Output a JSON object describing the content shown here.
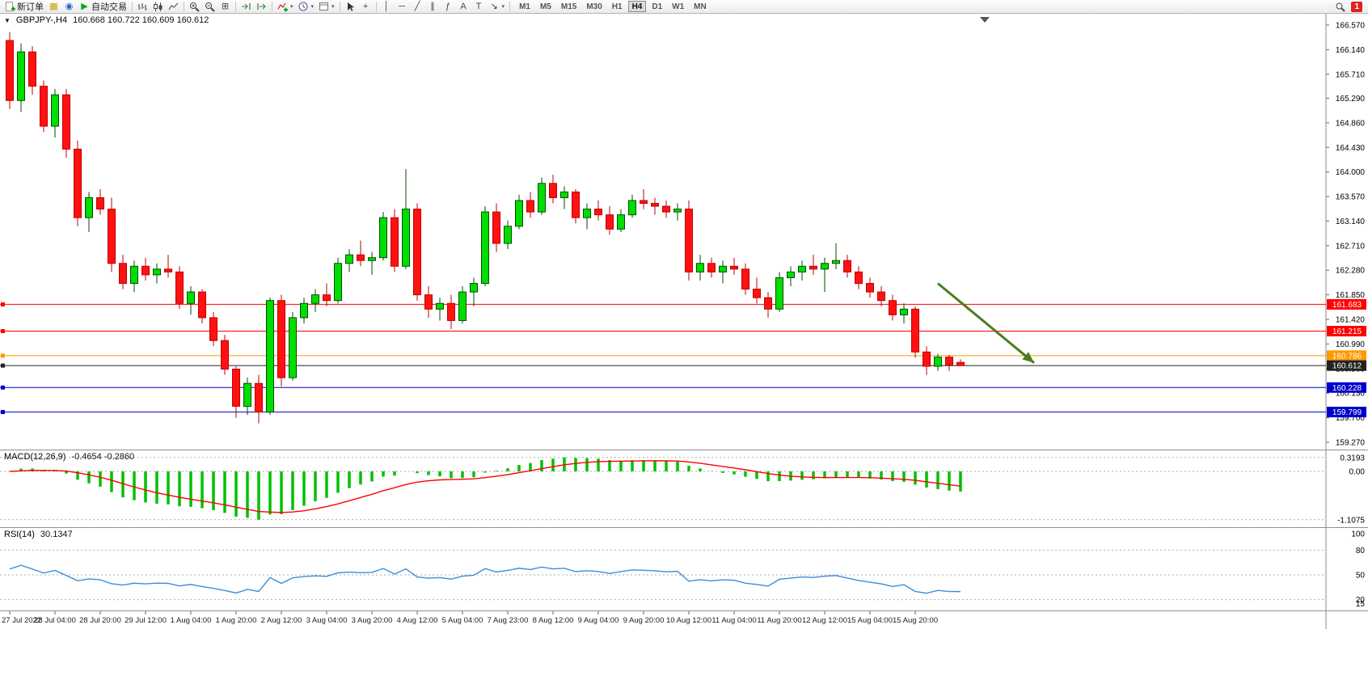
{
  "toolbar": {
    "new_order_label": "新订单",
    "autotrade_label": "自动交易",
    "timeframes": [
      "M1",
      "M5",
      "M15",
      "M30",
      "H1",
      "H4",
      "D1",
      "W1",
      "MN"
    ],
    "active_timeframe": "H4",
    "notification_badge": "1"
  },
  "icons": {
    "symbol_dropdown": "▼",
    "charts": "▦",
    "market_watch": "◉",
    "autotrade_play": "▶",
    "tile_windows": "⊞",
    "vertical_line": "│",
    "horizontal_line": "─",
    "trendline": "╱",
    "channel": "∥",
    "fibonacci": "ƒ",
    "text": "A",
    "text_label": "T",
    "arrows": "↘",
    "dropdown_caret": "▾",
    "crosshair": "+"
  },
  "symbol_info": {
    "symbol": "GBPJPY-,H4",
    "ohlc": "160.668 160.722 160.609 160.612"
  },
  "indicators": {
    "macd": {
      "name": "MACD(12,26,9)",
      "values": "-0.4654 -0.2860",
      "axis_labels": [
        "0.3193",
        "0.00",
        "-1.1075"
      ],
      "axis_values": [
        0.3193,
        0,
        -1.1075
      ]
    },
    "rsi": {
      "name": "RSI(14)",
      "value": "30.1347",
      "axis_labels": [
        "100",
        "80",
        "50",
        "20",
        "15"
      ],
      "axis_values": [
        100,
        80,
        50,
        20,
        15
      ],
      "level_lines": [
        80,
        50,
        20
      ]
    }
  },
  "price_axis": {
    "labels": [
      "166.570",
      "166.140",
      "165.710",
      "165.290",
      "164.860",
      "164.430",
      "164.000",
      "163.570",
      "163.140",
      "162.710",
      "162.280",
      "161.850",
      "161.420",
      "160.990",
      "160.560",
      "160.130",
      "159.700",
      "159.270"
    ]
  },
  "time_axis": {
    "step_bars": 4,
    "labels": [
      "27 Jul 2022",
      "28 Jul 04:00",
      "28 Jul 20:00",
      "29 Jul 12:00",
      "1 Aug 04:00",
      "1 Aug 20:00",
      "2 Aug 12:00",
      "3 Aug 04:00",
      "3 Aug 20:00",
      "4 Aug 12:00",
      "5 Aug 04:00",
      "7 Aug 23:00",
      "8 Aug 12:00",
      "9 Aug 04:00",
      "9 Aug 20:00",
      "10 Aug 12:00",
      "11 Aug 04:00",
      "11 Aug 20:00",
      "12 Aug 12:00",
      "15 Aug 04:00",
      "15 Aug 20:00"
    ]
  },
  "levels": [
    {
      "price": 161.683,
      "label": "161.683",
      "color": "#ff0000"
    },
    {
      "price": 161.215,
      "label": "161.215",
      "color": "#ff0000"
    },
    {
      "price": 160.786,
      "label": "160.786",
      "color": "#ff9900"
    },
    {
      "price": 160.612,
      "label": "160.612",
      "color": "#222222",
      "type": "bid"
    },
    {
      "price": 160.228,
      "label": "160.228",
      "color": "#0000cc"
    },
    {
      "price": 159.799,
      "label": "159.799",
      "color": "#0000cc"
    }
  ],
  "annotation_arrow": {
    "x1_bar": 82,
    "price1": 162.05,
    "x2_bar": 90.5,
    "price2": 160.66,
    "color": "#4a7d1f"
  },
  "colors": {
    "up_fill": "#00dd00",
    "up_stroke": "#004d00",
    "up_wick": "#004d00",
    "down_fill": "#ff1111",
    "down_stroke": "#c00000",
    "down_wick": "#c00000",
    "macd_hist": "#00c000",
    "macd_signal": "#ff0000",
    "rsi_line": "#3e8ed6",
    "axis_text": "#000000",
    "time_text": "#222222"
  },
  "chart_data": {
    "type": "candlestick",
    "title": "GBPJPY-,H4",
    "symbol": "GBPJPY",
    "timeframe": "H4",
    "ylim": [
      159.27,
      166.57
    ],
    "grid": false,
    "ohlc": [
      [
        166.3,
        166.45,
        165.1,
        165.25
      ],
      [
        165.25,
        166.25,
        165.05,
        166.1
      ],
      [
        166.1,
        166.2,
        165.35,
        165.5
      ],
      [
        165.5,
        165.6,
        164.7,
        164.8
      ],
      [
        164.8,
        165.45,
        164.6,
        165.35
      ],
      [
        165.35,
        165.45,
        164.25,
        164.4
      ],
      [
        164.4,
        164.55,
        163.05,
        163.2
      ],
      [
        163.2,
        163.65,
        162.95,
        163.55
      ],
      [
        163.55,
        163.7,
        163.25,
        163.35
      ],
      [
        163.35,
        163.55,
        162.25,
        162.4
      ],
      [
        162.4,
        162.55,
        161.95,
        162.05
      ],
      [
        162.05,
        162.45,
        161.9,
        162.35
      ],
      [
        162.35,
        162.5,
        162.1,
        162.2
      ],
      [
        162.2,
        162.4,
        162.05,
        162.3
      ],
      [
        162.3,
        162.55,
        162.15,
        162.25
      ],
      [
        162.25,
        162.35,
        161.6,
        161.7
      ],
      [
        161.7,
        162.0,
        161.5,
        161.9
      ],
      [
        161.9,
        161.95,
        161.35,
        161.45
      ],
      [
        161.45,
        161.55,
        160.95,
        161.05
      ],
      [
        161.05,
        161.15,
        160.45,
        160.55
      ],
      [
        160.55,
        160.6,
        159.7,
        159.9
      ],
      [
        159.9,
        160.4,
        159.75,
        160.3
      ],
      [
        160.3,
        160.45,
        159.6,
        159.8
      ],
      [
        159.8,
        161.8,
        159.75,
        161.75
      ],
      [
        161.75,
        161.85,
        160.25,
        160.4
      ],
      [
        160.4,
        161.55,
        160.35,
        161.45
      ],
      [
        161.45,
        161.8,
        161.35,
        161.7
      ],
      [
        161.7,
        161.95,
        161.55,
        161.85
      ],
      [
        161.85,
        162.05,
        161.65,
        161.75
      ],
      [
        161.75,
        162.5,
        161.7,
        162.4
      ],
      [
        162.4,
        162.65,
        162.25,
        162.55
      ],
      [
        162.55,
        162.8,
        162.35,
        162.45
      ],
      [
        162.45,
        162.6,
        162.2,
        162.5
      ],
      [
        162.5,
        163.3,
        162.45,
        163.2
      ],
      [
        163.2,
        163.35,
        162.25,
        162.35
      ],
      [
        162.35,
        164.05,
        162.3,
        163.35
      ],
      [
        163.35,
        163.45,
        161.75,
        161.85
      ],
      [
        161.85,
        162.0,
        161.45,
        161.6
      ],
      [
        161.6,
        161.8,
        161.4,
        161.7
      ],
      [
        161.7,
        161.85,
        161.25,
        161.4
      ],
      [
        161.4,
        162.0,
        161.35,
        161.9
      ],
      [
        161.9,
        162.15,
        161.65,
        162.05
      ],
      [
        162.05,
        163.4,
        162.0,
        163.3
      ],
      [
        163.3,
        163.45,
        162.6,
        162.75
      ],
      [
        162.75,
        163.15,
        162.65,
        163.05
      ],
      [
        163.05,
        163.6,
        163.0,
        163.5
      ],
      [
        163.5,
        163.65,
        163.2,
        163.3
      ],
      [
        163.3,
        163.9,
        163.25,
        163.8
      ],
      [
        163.8,
        163.95,
        163.45,
        163.55
      ],
      [
        163.55,
        163.75,
        163.35,
        163.65
      ],
      [
        163.65,
        163.7,
        163.1,
        163.2
      ],
      [
        163.2,
        163.45,
        163.0,
        163.35
      ],
      [
        163.35,
        163.5,
        163.15,
        163.25
      ],
      [
        163.25,
        163.4,
        162.9,
        163.0
      ],
      [
        163.0,
        163.35,
        162.95,
        163.25
      ],
      [
        163.25,
        163.6,
        163.2,
        163.5
      ],
      [
        163.5,
        163.7,
        163.35,
        163.45
      ],
      [
        163.45,
        163.55,
        163.25,
        163.4
      ],
      [
        163.4,
        163.5,
        163.2,
        163.3
      ],
      [
        163.3,
        163.45,
        163.15,
        163.35
      ],
      [
        163.35,
        163.5,
        162.1,
        162.25
      ],
      [
        162.25,
        162.55,
        162.1,
        162.4
      ],
      [
        162.4,
        162.5,
        162.15,
        162.25
      ],
      [
        162.25,
        162.45,
        162.05,
        162.35
      ],
      [
        162.35,
        162.5,
        162.2,
        162.3
      ],
      [
        162.3,
        162.4,
        161.85,
        161.95
      ],
      [
        161.95,
        162.15,
        161.7,
        161.8
      ],
      [
        161.8,
        161.9,
        161.45,
        161.6
      ],
      [
        161.6,
        162.25,
        161.55,
        162.15
      ],
      [
        162.15,
        162.35,
        162.0,
        162.25
      ],
      [
        162.25,
        162.45,
        162.1,
        162.35
      ],
      [
        162.35,
        162.55,
        162.2,
        162.3
      ],
      [
        162.3,
        162.5,
        161.9,
        162.4
      ],
      [
        162.4,
        162.75,
        162.3,
        162.45
      ],
      [
        162.45,
        162.55,
        162.15,
        162.25
      ],
      [
        162.25,
        162.35,
        161.95,
        162.05
      ],
      [
        162.05,
        162.15,
        161.8,
        161.9
      ],
      [
        161.9,
        162.0,
        161.65,
        161.75
      ],
      [
        161.75,
        161.85,
        161.4,
        161.5
      ],
      [
        161.5,
        161.7,
        161.35,
        161.6
      ],
      [
        161.6,
        161.65,
        160.75,
        160.85
      ],
      [
        160.85,
        160.95,
        160.45,
        160.6
      ],
      [
        160.6,
        160.82,
        160.52,
        160.76
      ],
      [
        160.76,
        160.8,
        160.52,
        160.62
      ],
      [
        160.668,
        160.722,
        160.609,
        160.612
      ]
    ]
  }
}
